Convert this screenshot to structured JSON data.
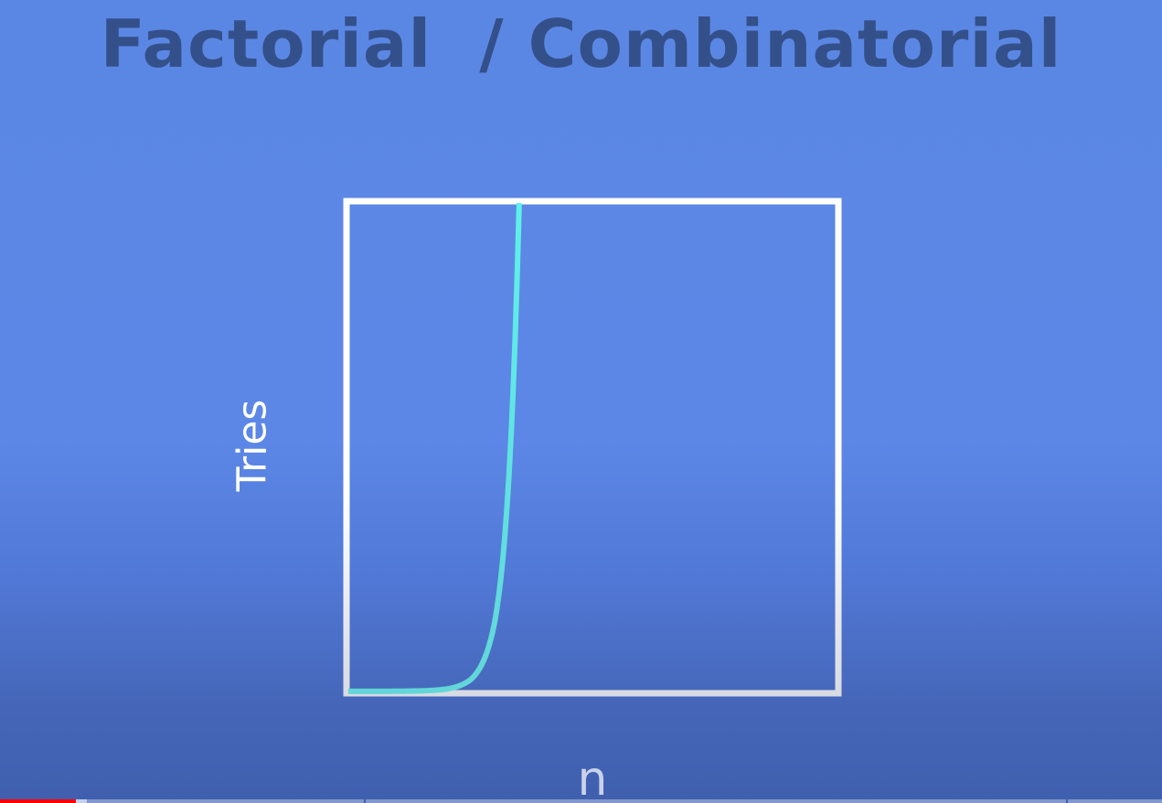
{
  "chart_data": {
    "type": "line",
    "title": "Factorial  / Combinatorial",
    "xlabel": "n",
    "ylabel": "Tries",
    "xlim": [
      0,
      20
    ],
    "ylim": [
      0,
      5040
    ],
    "grid": false,
    "series": [
      {
        "color": "#5ff1ea",
        "x": [
          0,
          1,
          2,
          3,
          4,
          5,
          6,
          7
        ],
        "values": [
          1,
          1,
          2,
          6,
          24,
          120,
          720,
          5040
        ]
      }
    ]
  },
  "colors": {
    "frame": "#ffffff",
    "title": "#34508a"
  },
  "player": {
    "progress": 0.065,
    "buffered": 0.075,
    "chapter_marks": [
      0.313,
      0.917
    ]
  }
}
